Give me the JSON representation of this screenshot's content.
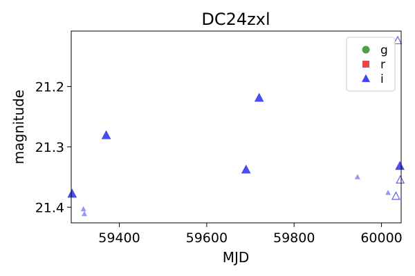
{
  "chart_data": {
    "type": "scatter",
    "title": "DC24zxl",
    "xlabel": "MJD",
    "ylabel": "magnitude",
    "xlim": [
      59290,
      60045
    ],
    "ylim": [
      21.426,
      21.108
    ],
    "y_inverted": true,
    "xticks": [
      59400,
      59600,
      59800,
      60000
    ],
    "xtick_labels": [
      "59400",
      "59600",
      "59800",
      "60000"
    ],
    "yticks": [
      21.2,
      21.3,
      21.4
    ],
    "ytick_labels": [
      "21.2",
      "21.3",
      "21.4"
    ],
    "grid": false,
    "legend_placement": "top-right",
    "legend": [
      {
        "label": "g",
        "marker": "circle",
        "color": "#4aa34a"
      },
      {
        "label": "r",
        "marker": "square",
        "color": "#ee4444"
      },
      {
        "label": "i",
        "marker": "triangle",
        "color": "#4444ee"
      }
    ],
    "series": [
      {
        "name": "i",
        "color": "#4444ee",
        "marker": "triangle",
        "points": [
          {
            "x": 59292,
            "y": 21.378,
            "style": "filled"
          },
          {
            "x": 59370,
            "y": 21.281,
            "style": "filled"
          },
          {
            "x": 59690,
            "y": 21.338,
            "style": "filled"
          },
          {
            "x": 59720,
            "y": 21.219,
            "style": "filled"
          },
          {
            "x": 60042,
            "y": 21.332,
            "style": "filled"
          },
          {
            "x": 59318,
            "y": 21.403,
            "style": "faint"
          },
          {
            "x": 59320,
            "y": 21.411,
            "style": "faint"
          },
          {
            "x": 59945,
            "y": 21.35,
            "style": "faint"
          },
          {
            "x": 60015,
            "y": 21.376,
            "style": "faint"
          },
          {
            "x": 60037,
            "y": 21.124,
            "style": "open"
          },
          {
            "x": 60033,
            "y": 21.382,
            "style": "open"
          },
          {
            "x": 60043,
            "y": 21.355,
            "style": "open"
          }
        ]
      }
    ]
  }
}
